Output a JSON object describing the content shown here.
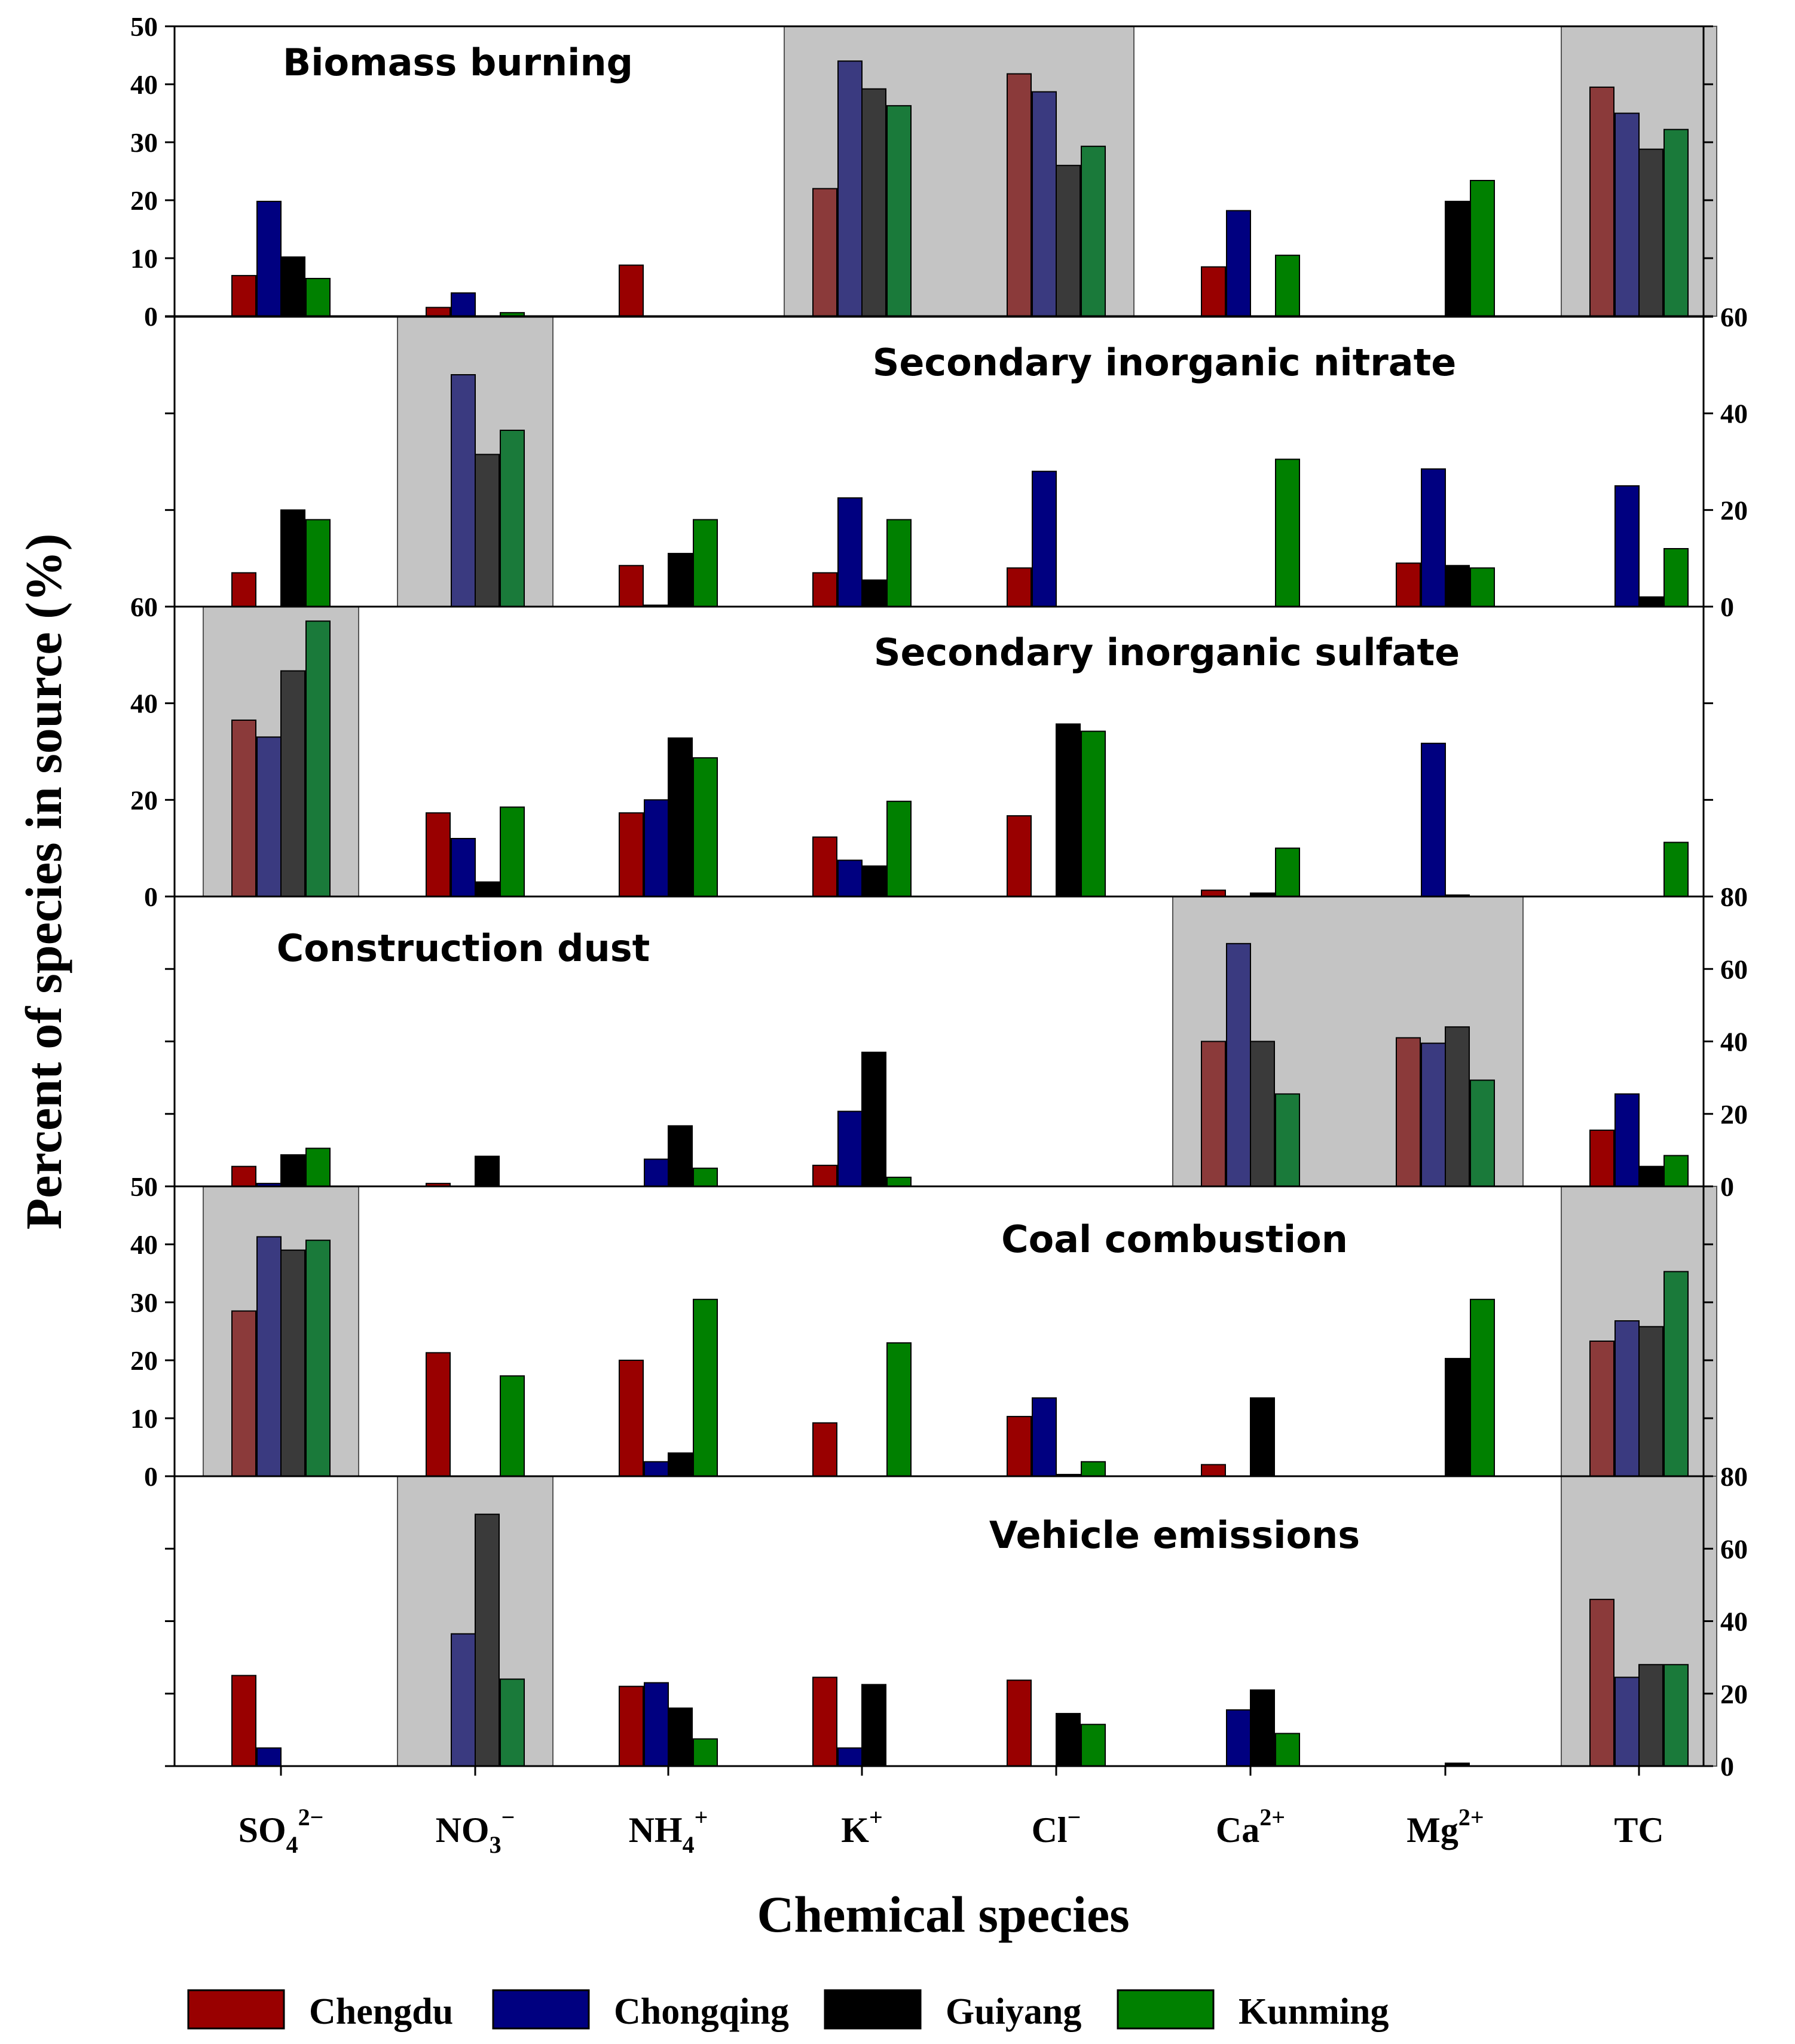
{
  "chart_data": {
    "type": "bar",
    "xlabel": "Chemical species",
    "ylabel": "Percent of species in source (%)",
    "categories": [
      {
        "base": "SO",
        "sub": "4",
        "sup": "2−"
      },
      {
        "base": "NO",
        "sub": "3",
        "sup": "−"
      },
      {
        "base": "NH",
        "sub": "4",
        "sup": "+"
      },
      {
        "base": "K",
        "sub": "",
        "sup": "+"
      },
      {
        "base": "Cl",
        "sub": "",
        "sup": "−"
      },
      {
        "base": "Ca",
        "sub": "",
        "sup": "2+"
      },
      {
        "base": "Mg",
        "sub": "",
        "sup": "2+"
      },
      {
        "base": "TC",
        "sub": "",
        "sup": ""
      }
    ],
    "series_names": [
      "Chengdu",
      "Chongqing",
      "Guiyang",
      "Kunming"
    ],
    "colors": {
      "normal": [
        "#990000",
        "#000080",
        "#000000",
        "#008000"
      ],
      "highlighted": [
        "#8B3A3A",
        "#3A3A80",
        "#3A3A3A",
        "#1A7A3A"
      ],
      "highlight_box": "#C4C4C4"
    },
    "legend_position": "bottom",
    "grid": false,
    "panels": [
      {
        "title": "Biomass burning",
        "axis_side": "left",
        "ylim": [
          0,
          50
        ],
        "ticks": [
          0,
          10,
          20,
          30,
          40,
          50
        ],
        "highlight": [
          [
            3,
            4
          ],
          [
            7,
            7
          ]
        ],
        "series": [
          {
            "name": "Chengdu",
            "values": [
              7,
              1.5,
              8.8,
              22,
              41.8,
              8.5,
              0,
              39.5
            ]
          },
          {
            "name": "Chongqing",
            "values": [
              19.8,
              4,
              0,
              44,
              38.7,
              18.2,
              0,
              35
            ]
          },
          {
            "name": "Guiyang",
            "values": [
              10.2,
              0,
              0,
              39.2,
              26,
              0,
              19.8,
              28.8
            ]
          },
          {
            "name": "Kunming",
            "values": [
              6.5,
              0.6,
              0,
              36.3,
              29.3,
              10.5,
              23.4,
              32.2
            ]
          }
        ]
      },
      {
        "title": "Secondary inorganic nitrate",
        "axis_side": "right",
        "ylim": [
          0,
          60
        ],
        "ticks": [
          0,
          20,
          40,
          60
        ],
        "highlight": [
          [
            1,
            1
          ]
        ],
        "series": [
          {
            "name": "Chengdu",
            "values": [
              7,
              0,
              8.5,
              7,
              8,
              0,
              9,
              0
            ]
          },
          {
            "name": "Chongqing",
            "values": [
              0,
              48,
              0.3,
              22.5,
              28,
              0,
              28.5,
              25
            ]
          },
          {
            "name": "Guiyang",
            "values": [
              20,
              31.5,
              11,
              5.5,
              0,
              0,
              8.5,
              2
            ]
          },
          {
            "name": "Kunming",
            "values": [
              18,
              36.5,
              18,
              18,
              0,
              30.5,
              8,
              12
            ]
          }
        ]
      },
      {
        "title": "Secondary inorganic sulfate",
        "axis_side": "left",
        "ylim": [
          0,
          60
        ],
        "ticks": [
          0,
          20,
          40,
          60
        ],
        "highlight": [
          [
            0,
            0
          ]
        ],
        "series": [
          {
            "name": "Chengdu",
            "values": [
              36.5,
              17.3,
              17.3,
              12.3,
              16.7,
              1.3,
              0,
              0
            ]
          },
          {
            "name": "Chongqing",
            "values": [
              33,
              12,
              20,
              7.5,
              0,
              0,
              31.7,
              0
            ]
          },
          {
            "name": "Guiyang",
            "values": [
              46.7,
              3,
              32.8,
              6.3,
              35.7,
              0.7,
              0.3,
              0
            ]
          },
          {
            "name": "Kunming",
            "values": [
              57,
              18.5,
              28.7,
              19.7,
              34.2,
              10,
              0,
              11.2
            ]
          }
        ]
      },
      {
        "title": "Construction dust",
        "axis_side": "right",
        "ylim": [
          0,
          80
        ],
        "ticks": [
          0,
          20,
          40,
          60,
          80
        ],
        "highlight": [
          [
            5,
            6
          ]
        ],
        "series": [
          {
            "name": "Chengdu",
            "values": [
              5.5,
              0.8,
              0,
              5.8,
              0,
              40,
              41,
              15.5
            ]
          },
          {
            "name": "Chongqing",
            "values": [
              0.8,
              0,
              7.5,
              20.7,
              0,
              67,
              39.5,
              25.5
            ]
          },
          {
            "name": "Guiyang",
            "values": [
              8.7,
              8.3,
              16.7,
              37,
              0,
              40,
              44,
              5.5
            ]
          },
          {
            "name": "Kunming",
            "values": [
              10.5,
              0,
              5,
              2.5,
              0,
              25.5,
              29.3,
              8.5
            ]
          }
        ]
      },
      {
        "title": "Coal combustion",
        "axis_side": "left",
        "ylim": [
          0,
          50
        ],
        "ticks": [
          0,
          10,
          20,
          30,
          40,
          50
        ],
        "highlight": [
          [
            0,
            0
          ],
          [
            7,
            7
          ]
        ],
        "series": [
          {
            "name": "Chengdu",
            "values": [
              28.5,
              21.3,
              20,
              9.2,
              10.3,
              2,
              0,
              23.3
            ]
          },
          {
            "name": "Chongqing",
            "values": [
              41.3,
              0,
              2.5,
              0,
              13.5,
              0,
              0,
              26.8
            ]
          },
          {
            "name": "Guiyang",
            "values": [
              39,
              0,
              4,
              0,
              0.3,
              13.5,
              20.3,
              25.8
            ]
          },
          {
            "name": "Kunming",
            "values": [
              40.7,
              17.3,
              30.5,
              23,
              2.5,
              0,
              30.5,
              35.3
            ]
          }
        ]
      },
      {
        "title": "Vehicle emissions",
        "axis_side": "right",
        "ylim": [
          0,
          80
        ],
        "ticks": [
          0,
          20,
          40,
          60,
          80
        ],
        "highlight": [
          [
            1,
            1
          ],
          [
            7,
            7
          ]
        ],
        "series": [
          {
            "name": "Chengdu",
            "values": [
              25,
              0,
              22,
              24.5,
              23.7,
              0,
              0,
              46
            ]
          },
          {
            "name": "Chongqing",
            "values": [
              5,
              36.5,
              23,
              5,
              0,
              15.5,
              0,
              24.5
            ]
          },
          {
            "name": "Guiyang",
            "values": [
              0,
              69.5,
              16,
              22.5,
              14.5,
              21,
              0.8,
              28
            ]
          },
          {
            "name": "Kunming",
            "values": [
              0,
              24,
              7.5,
              0,
              11.5,
              9,
              0,
              28
            ]
          }
        ]
      }
    ]
  }
}
